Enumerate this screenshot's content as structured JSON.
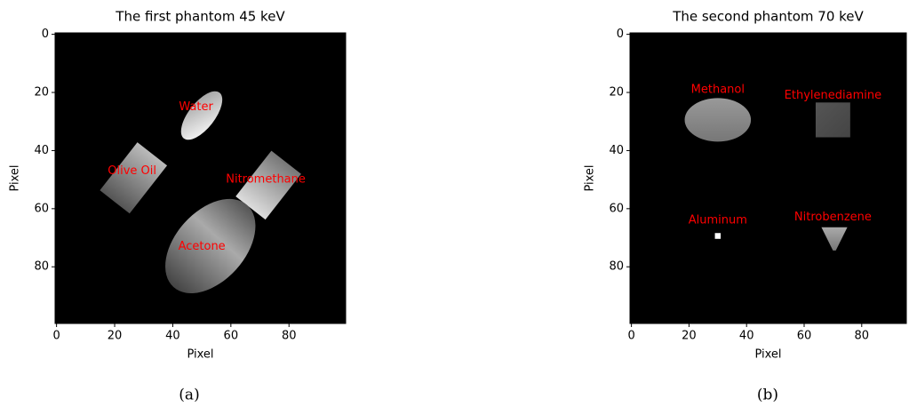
{
  "chart_data": [
    {
      "type": "image",
      "title": "The first phantom 45 keV",
      "xlabel": "Pixel",
      "ylabel": "Pixel",
      "xlim": [
        -0.5,
        99.5
      ],
      "ylim": [
        99.5,
        -0.5
      ],
      "xticks": [
        0,
        20,
        40,
        60,
        80
      ],
      "yticks": [
        0,
        20,
        40,
        60,
        80
      ],
      "annotations": [
        "Water",
        "Olive Oil",
        "Nitromethane",
        "Acetone"
      ],
      "caption": "(a)"
    },
    {
      "type": "image",
      "title": "The second phantom 70 keV",
      "xlabel": "Pixel",
      "ylabel": "Pixel",
      "xlim": [
        -0.5,
        95.5
      ],
      "ylim": [
        99.5,
        -0.5
      ],
      "xticks": [
        0,
        20,
        40,
        60,
        80
      ],
      "yticks": [
        0,
        20,
        40,
        60,
        80
      ],
      "annotations": [
        "Methanol",
        "Ethylenediamine",
        "Aluminum",
        "Nitrobenzene"
      ],
      "caption": "(b)"
    }
  ]
}
